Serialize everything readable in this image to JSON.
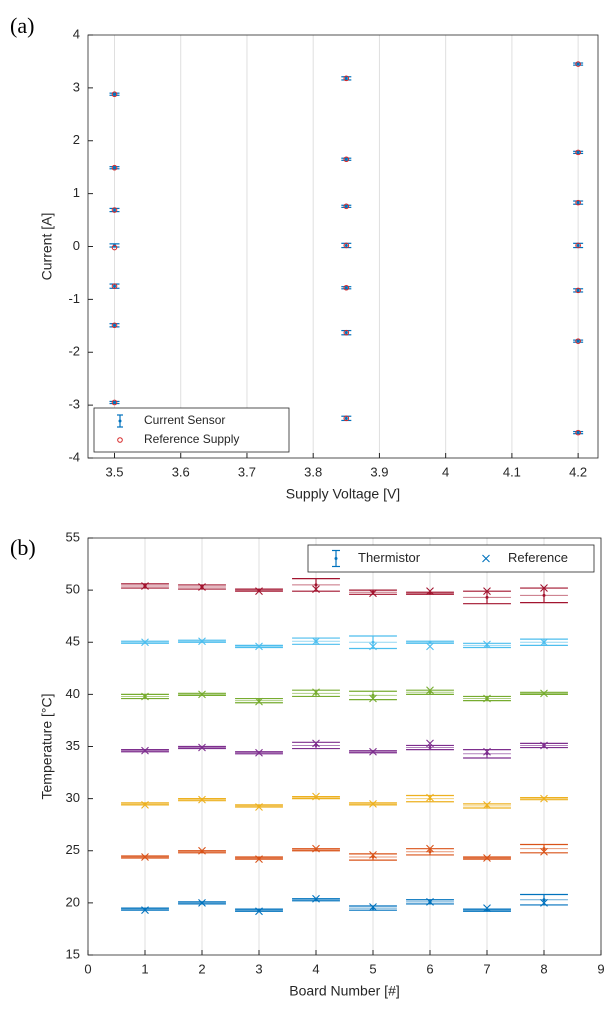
{
  "chart_data": [
    {
      "type": "errorbar",
      "panel_label": "(a)",
      "xlabel": "Supply Voltage [V]",
      "ylabel": "Current [A]",
      "xlim": [
        3.46,
        4.23
      ],
      "ylim": [
        -4,
        4
      ],
      "xticks": [
        3.5,
        3.6,
        3.7,
        3.8,
        3.9,
        4,
        4.1,
        4.2
      ],
      "yticks": [
        -4,
        -3,
        -2,
        -1,
        0,
        1,
        2,
        3,
        4
      ],
      "grid": "x",
      "legend": "lower left",
      "series": [
        {
          "name": "Current Sensor",
          "color": "#0072bd",
          "marker": "errorbar",
          "x": [
            3.5,
            3.5,
            3.5,
            3.5,
            3.5,
            3.5,
            3.5,
            3.85,
            3.85,
            3.85,
            3.85,
            3.85,
            3.85,
            3.85,
            4.2,
            4.2,
            4.2,
            4.2,
            4.2,
            4.2,
            4.2
          ],
          "values": [
            2.88,
            1.49,
            0.69,
            0.02,
            -0.75,
            -1.49,
            -2.95,
            3.18,
            1.65,
            0.76,
            0.02,
            -0.78,
            -1.63,
            -3.25,
            3.45,
            1.78,
            0.83,
            0.02,
            -0.83,
            -1.79,
            -3.52
          ],
          "errors": [
            0.02,
            0.02,
            0.03,
            0.03,
            0.04,
            0.03,
            0.02,
            0.03,
            0.02,
            0.02,
            0.04,
            0.02,
            0.04,
            0.04,
            0.02,
            0.02,
            0.03,
            0.04,
            0.03,
            0.02,
            0.02
          ]
        },
        {
          "name": "Reference Supply",
          "color": "#d62728",
          "marker": "o",
          "x": [
            3.5,
            3.5,
            3.5,
            3.5,
            3.5,
            3.5,
            3.5,
            3.85,
            3.85,
            3.85,
            3.85,
            3.85,
            3.85,
            3.85,
            4.2,
            4.2,
            4.2,
            4.2,
            4.2,
            4.2,
            4.2
          ],
          "values": [
            2.88,
            1.49,
            0.69,
            -0.02,
            -0.75,
            -1.49,
            -2.95,
            3.18,
            1.65,
            0.76,
            0.02,
            -0.78,
            -1.63,
            -3.25,
            3.45,
            1.78,
            0.83,
            0.02,
            -0.83,
            -1.79,
            -3.52
          ]
        }
      ]
    },
    {
      "type": "errorbar-groups",
      "panel_label": "(b)",
      "xlabel": "Board Number [#]",
      "ylabel": "Temperature [°C]",
      "xlim": [
        0,
        9
      ],
      "ylim": [
        15,
        55
      ],
      "xticks": [
        0,
        1,
        2,
        3,
        4,
        5,
        6,
        7,
        8,
        9
      ],
      "yticks": [
        15,
        20,
        25,
        30,
        35,
        40,
        45,
        50,
        55
      ],
      "grid": "x",
      "legend": "upper right",
      "x": [
        1,
        2,
        3,
        4,
        5,
        6,
        7,
        8
      ],
      "level_colors": [
        "#0072bd",
        "#d95319",
        "#edb120",
        "#7e2f8e",
        "#77ac30",
        "#4dbeee",
        "#a2142f"
      ],
      "series": [
        {
          "name": "Thermistor",
          "color": "#0072bd",
          "marker": "errorbar",
          "levels": [
            {
              "values": [
                19.4,
                20.0,
                19.3,
                20.3,
                19.5,
                20.1,
                19.3,
                20.3
              ],
              "errors": [
                0.1,
                0.1,
                0.1,
                0.1,
                0.2,
                0.2,
                0.1,
                0.5
              ]
            },
            {
              "values": [
                24.4,
                24.9,
                24.3,
                25.1,
                24.4,
                24.9,
                24.3,
                25.2
              ],
              "errors": [
                0.1,
                0.1,
                0.1,
                0.1,
                0.3,
                0.3,
                0.1,
                0.4
              ]
            },
            {
              "values": [
                29.5,
                29.9,
                29.3,
                30.1,
                29.5,
                30.0,
                29.3,
                30.0
              ],
              "errors": [
                0.1,
                0.1,
                0.1,
                0.1,
                0.1,
                0.3,
                0.2,
                0.1
              ]
            },
            {
              "values": [
                34.6,
                34.9,
                34.4,
                35.1,
                34.5,
                34.9,
                34.3,
                35.1
              ],
              "errors": [
                0.1,
                0.1,
                0.1,
                0.3,
                0.1,
                0.2,
                0.4,
                0.2
              ]
            },
            {
              "values": [
                39.8,
                40.0,
                39.4,
                40.1,
                39.9,
                40.2,
                39.6,
                40.1
              ],
              "errors": [
                0.2,
                0.1,
                0.2,
                0.3,
                0.4,
                0.2,
                0.2,
                0.1
              ]
            },
            {
              "values": [
                45.0,
                45.1,
                44.6,
                45.1,
                45.0,
                45.0,
                44.7,
                45.0
              ],
              "errors": [
                0.1,
                0.1,
                0.1,
                0.3,
                0.6,
                0.1,
                0.2,
                0.3
              ]
            },
            {
              "values": [
                50.4,
                50.3,
                50.0,
                50.5,
                49.8,
                49.7,
                49.3,
                49.5
              ],
              "errors": [
                0.2,
                0.2,
                0.1,
                0.6,
                0.2,
                0.1,
                0.6,
                0.7
              ]
            }
          ]
        },
        {
          "name": "Reference",
          "color": "#0072bd",
          "marker": "x",
          "levels": [
            {
              "values": [
                19.3,
                20.0,
                19.2,
                20.4,
                19.6,
                20.1,
                19.5,
                20.0
              ]
            },
            {
              "values": [
                24.4,
                25.0,
                24.2,
                25.2,
                24.6,
                25.2,
                24.3,
                24.9
              ]
            },
            {
              "values": [
                29.4,
                29.9,
                29.2,
                30.2,
                29.5,
                30.1,
                29.4,
                30.0
              ]
            },
            {
              "values": [
                34.6,
                34.9,
                34.4,
                35.3,
                34.5,
                35.3,
                34.5,
                35.1
              ]
            },
            {
              "values": [
                39.8,
                40.0,
                39.3,
                40.2,
                39.6,
                40.4,
                39.6,
                40.1
              ]
            },
            {
              "values": [
                45.0,
                45.1,
                44.6,
                45.1,
                44.6,
                44.6,
                44.8,
                45.0
              ]
            },
            {
              "values": [
                50.4,
                50.3,
                49.9,
                50.1,
                49.7,
                49.9,
                49.9,
                50.2
              ]
            }
          ]
        }
      ]
    }
  ]
}
